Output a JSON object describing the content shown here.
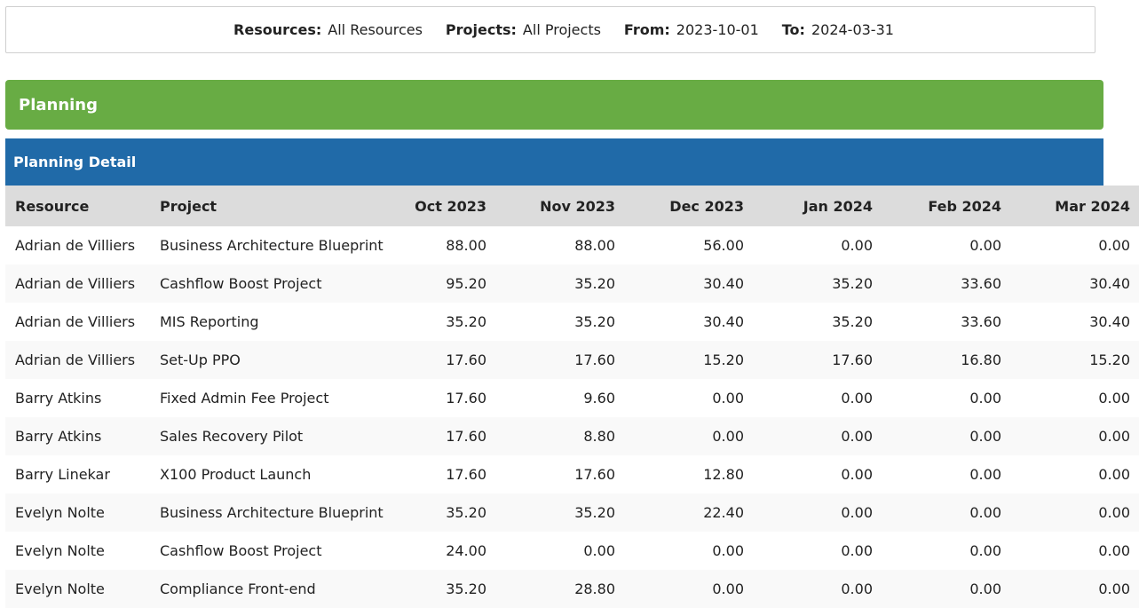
{
  "filters": [
    {
      "label": "Resources:",
      "value": "All Resources"
    },
    {
      "label": "Projects:",
      "value": "All Projects"
    },
    {
      "label": "From:",
      "value": "2023-10-01"
    },
    {
      "label": "To:",
      "value": "2024-03-31"
    }
  ],
  "section_title": "Planning",
  "panel_title": "Planning Detail",
  "columns": [
    "Resource",
    "Project",
    "Oct 2023",
    "Nov 2023",
    "Dec 2023",
    "Jan 2024",
    "Feb 2024",
    "Mar 2024"
  ],
  "rows": [
    [
      "Adrian de Villiers",
      "Business Architecture Blueprint",
      "88.00",
      "88.00",
      "56.00",
      "0.00",
      "0.00",
      "0.00"
    ],
    [
      "Adrian de Villiers",
      "Cashflow Boost Project",
      "95.20",
      "35.20",
      "30.40",
      "35.20",
      "33.60",
      "30.40"
    ],
    [
      "Adrian de Villiers",
      "MIS Reporting",
      "35.20",
      "35.20",
      "30.40",
      "35.20",
      "33.60",
      "30.40"
    ],
    [
      "Adrian de Villiers",
      "Set-Up PPO",
      "17.60",
      "17.60",
      "15.20",
      "17.60",
      "16.80",
      "15.20"
    ],
    [
      "Barry Atkins",
      "Fixed Admin Fee Project",
      "17.60",
      "9.60",
      "0.00",
      "0.00",
      "0.00",
      "0.00"
    ],
    [
      "Barry Atkins",
      "Sales Recovery Pilot",
      "17.60",
      "8.80",
      "0.00",
      "0.00",
      "0.00",
      "0.00"
    ],
    [
      "Barry Linekar",
      "X100 Product Launch",
      "17.60",
      "17.60",
      "12.80",
      "0.00",
      "0.00",
      "0.00"
    ],
    [
      "Evelyn Nolte",
      "Business Architecture Blueprint",
      "35.20",
      "35.20",
      "22.40",
      "0.00",
      "0.00",
      "0.00"
    ],
    [
      "Evelyn Nolte",
      "Cashflow Boost Project",
      "24.00",
      "0.00",
      "0.00",
      "0.00",
      "0.00",
      "0.00"
    ],
    [
      "Evelyn Nolte",
      "Compliance Front-end",
      "35.20",
      "28.80",
      "0.00",
      "0.00",
      "0.00",
      "0.00"
    ]
  ],
  "colors": {
    "planning_bar": "#68ac44",
    "detail_bar": "#206aa8",
    "header_bg": "#dcdcdc",
    "stripe_bg": "#f9f9f9"
  }
}
